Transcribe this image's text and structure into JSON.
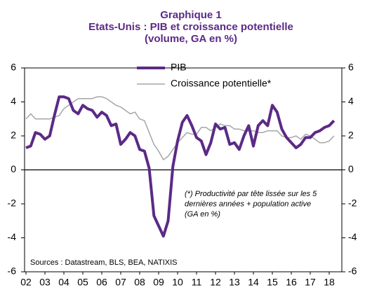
{
  "chart_data": {
    "type": "line",
    "title": [
      "Graphique 1",
      "Etats-Unis : PIB et croissance potentielle",
      "(volume, GA en %)"
    ],
    "annotation": [
      "(*) Productivité par tête lissée sur les 5",
      "dernières années + population active",
      "(GA en %)"
    ],
    "source": "Sources : Datastream, BLS, BEA, NATIXIS",
    "x": [
      2002,
      2002.25,
      2002.5,
      2002.75,
      2003,
      2003.25,
      2003.5,
      2003.75,
      2004,
      2004.25,
      2004.5,
      2004.75,
      2005,
      2005.25,
      2005.5,
      2005.75,
      2006,
      2006.25,
      2006.5,
      2006.75,
      2007,
      2007.25,
      2007.5,
      2007.75,
      2008,
      2008.25,
      2008.5,
      2008.75,
      2009,
      2009.25,
      2009.5,
      2009.75,
      2010,
      2010.25,
      2010.5,
      2010.75,
      2011,
      2011.25,
      2011.5,
      2011.75,
      2012,
      2012.25,
      2012.5,
      2012.75,
      2013,
      2013.25,
      2013.5,
      2013.75,
      2014,
      2014.25,
      2014.5,
      2014.75,
      2015,
      2015.25,
      2015.5,
      2015.75,
      2016,
      2016.25,
      2016.5,
      2016.75,
      2017,
      2017.25,
      2017.5,
      2017.75,
      2018,
      2018.25
    ],
    "series": [
      {
        "name": "PIB",
        "color": "#5b2a86",
        "width": 4,
        "values": [
          1.3,
          1.4,
          2.2,
          2.1,
          1.8,
          2.0,
          3.2,
          4.3,
          4.3,
          4.2,
          3.5,
          3.3,
          3.8,
          3.6,
          3.5,
          3.1,
          3.4,
          3.2,
          2.6,
          2.7,
          1.5,
          1.8,
          2.2,
          2.0,
          1.2,
          1.1,
          0.1,
          -2.7,
          -3.3,
          -3.9,
          -3.0,
          0.2,
          1.7,
          2.8,
          3.2,
          2.6,
          1.9,
          1.7,
          0.9,
          1.6,
          2.7,
          2.4,
          2.5,
          1.5,
          1.6,
          1.2,
          2.0,
          2.6,
          1.4,
          2.6,
          2.9,
          2.6,
          3.8,
          3.4,
          2.4,
          1.9,
          1.6,
          1.3,
          1.5,
          1.9,
          1.9,
          2.2,
          2.3,
          2.5,
          2.6,
          2.9
        ]
      },
      {
        "name": "Croissance potentielle*",
        "color": "#a6a6a6",
        "width": 1.5,
        "values": [
          3.0,
          3.3,
          3.0,
          3.0,
          3.0,
          3.0,
          3.1,
          3.2,
          3.6,
          3.8,
          4.0,
          4.2,
          4.2,
          4.2,
          4.2,
          4.3,
          4.3,
          4.2,
          4.0,
          3.8,
          3.7,
          3.5,
          3.3,
          3.4,
          3.0,
          2.9,
          2.2,
          1.5,
          1.1,
          0.6,
          0.8,
          1.2,
          1.6,
          1.9,
          2.2,
          2.1,
          2.1,
          2.5,
          2.5,
          2.3,
          2.5,
          2.7,
          2.6,
          2.6,
          2.4,
          2.4,
          2.3,
          2.3,
          2.3,
          2.2,
          2.2,
          2.3,
          2.3,
          2.3,
          2.0,
          1.9,
          1.9,
          2.0,
          1.8,
          2.1,
          2.0,
          1.8,
          1.6,
          1.6,
          1.7,
          2.0
        ]
      }
    ],
    "xlim": [
      2002,
      2018.75
    ],
    "xticks": [
      {
        "value": 2002,
        "label": "02"
      },
      {
        "value": 2003,
        "label": "03"
      },
      {
        "value": 2004,
        "label": "04"
      },
      {
        "value": 2005,
        "label": "05"
      },
      {
        "value": 2006,
        "label": "06"
      },
      {
        "value": 2007,
        "label": "07"
      },
      {
        "value": 2008,
        "label": "08"
      },
      {
        "value": 2009,
        "label": "09"
      },
      {
        "value": 2010,
        "label": "10"
      },
      {
        "value": 2011,
        "label": "11"
      },
      {
        "value": 2012,
        "label": "12"
      },
      {
        "value": 2013,
        "label": "13"
      },
      {
        "value": 2014,
        "label": "14"
      },
      {
        "value": 2015,
        "label": "15"
      },
      {
        "value": 2016,
        "label": "16"
      },
      {
        "value": 2017,
        "label": "17"
      },
      {
        "value": 2018,
        "label": "18"
      }
    ],
    "ylim": [
      -6,
      6
    ],
    "yticks": [
      6,
      4,
      2,
      0,
      -2,
      -4,
      -6
    ],
    "y2lim": [
      -6,
      6
    ],
    "y2ticks": [
      6,
      4,
      2,
      0,
      -2,
      -4,
      -6
    ]
  }
}
